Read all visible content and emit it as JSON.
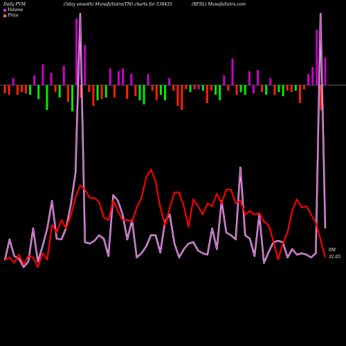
{
  "header": {
    "title": "Daily PVM",
    "subtitle": "(5day smooth) MunafaSutra(TM) charts for 539435",
    "ticker": "(RFSL) MunafaSutra.com"
  },
  "legend": {
    "volume_label": "Volume",
    "price_label": "Price",
    "volume_color": "#cc33cc",
    "price_color": "#e07a3a"
  },
  "side_labels": {
    "volume": "0M",
    "price": "32.05"
  },
  "colors": {
    "background": "#000000",
    "bar_up": "#cc00cc",
    "bar_down": "#ff2200",
    "bar_green": "#00ee00",
    "price_line": "#ff0000",
    "volume_line": "#cc44cc",
    "baseline": "#bbbbbb"
  },
  "chart_data": {
    "type": "line",
    "bars": [
      [
        -12,
        "r"
      ],
      [
        -14,
        "r"
      ],
      [
        10,
        "m"
      ],
      [
        -14,
        "r"
      ],
      [
        -10,
        "r"
      ],
      [
        -12,
        "r"
      ],
      [
        -14,
        "g"
      ],
      [
        14,
        "m"
      ],
      [
        -20,
        "g"
      ],
      [
        30,
        "m"
      ],
      [
        -36,
        "g"
      ],
      [
        18,
        "m"
      ],
      [
        -10,
        "r"
      ],
      [
        -18,
        "g"
      ],
      [
        28,
        "m"
      ],
      [
        -24,
        "r"
      ],
      [
        -38,
        "g"
      ],
      [
        96,
        "m"
      ],
      [
        -18,
        "r"
      ],
      [
        58,
        "m"
      ],
      [
        -10,
        "r"
      ],
      [
        -30,
        "r"
      ],
      [
        -22,
        "g"
      ],
      [
        -20,
        "r"
      ],
      [
        -18,
        "g"
      ],
      [
        24,
        "m"
      ],
      [
        -18,
        "r"
      ],
      [
        20,
        "m"
      ],
      [
        24,
        "m"
      ],
      [
        -20,
        "r"
      ],
      [
        16,
        "m"
      ],
      [
        -16,
        "r"
      ],
      [
        -22,
        "g"
      ],
      [
        -28,
        "g"
      ],
      [
        16,
        "m"
      ],
      [
        -8,
        "r"
      ],
      [
        -22,
        "r"
      ],
      [
        -14,
        "g"
      ],
      [
        -22,
        "g"
      ],
      [
        10,
        "m"
      ],
      [
        -8,
        "r"
      ],
      [
        -30,
        "r"
      ],
      [
        -36,
        "r"
      ],
      [
        -6,
        "r"
      ],
      [
        -10,
        "g"
      ],
      [
        -6,
        "r"
      ],
      [
        -6,
        "m"
      ],
      [
        -8,
        "g"
      ],
      [
        -26,
        "r"
      ],
      [
        -8,
        "r"
      ],
      [
        -14,
        "g"
      ],
      [
        -22,
        "g"
      ],
      [
        14,
        "m"
      ],
      [
        -8,
        "r"
      ],
      [
        38,
        "m"
      ],
      [
        -14,
        "r"
      ],
      [
        -10,
        "g"
      ],
      [
        -14,
        "g"
      ],
      [
        20,
        "m"
      ],
      [
        -12,
        "m"
      ],
      [
        22,
        "m"
      ],
      [
        -10,
        "r"
      ],
      [
        -14,
        "g"
      ],
      [
        10,
        "m"
      ],
      [
        -14,
        "r"
      ],
      [
        -10,
        "g"
      ],
      [
        -16,
        "g"
      ],
      [
        -8,
        "r"
      ],
      [
        -10,
        "r"
      ],
      [
        -8,
        "g"
      ],
      [
        -26,
        "r"
      ],
      [
        -6,
        "r"
      ],
      [
        16,
        "m"
      ],
      [
        26,
        "m"
      ],
      [
        80,
        "m"
      ],
      [
        -36,
        "r"
      ],
      [
        40,
        "m"
      ]
    ],
    "price": [
      376,
      372,
      380,
      368,
      382,
      370,
      372,
      386,
      366,
      375,
      325,
      336,
      318,
      330,
      312,
      285,
      268,
      274,
      286,
      286,
      292,
      314,
      318,
      290,
      305,
      318,
      318,
      320,
      300,
      286,
      256,
      245,
      262,
      300,
      326,
      300,
      278,
      278,
      298,
      328,
      288,
      298,
      310,
      294,
      298,
      280,
      294,
      274,
      274,
      294,
      290,
      310,
      305,
      310,
      308,
      320,
      326,
      348,
      375,
      352,
      336,
      304,
      288,
      300,
      298,
      310,
      322,
      346,
      372
    ],
    "volume": [
      376,
      346,
      370,
      374,
      386,
      378,
      330,
      378,
      356,
      330,
      290,
      345,
      346,
      330,
      296,
      250,
      20,
      350,
      352,
      348,
      340,
      345,
      370,
      282,
      290,
      310,
      346,
      318,
      372,
      366,
      356,
      340,
      340,
      365,
      320,
      310,
      352,
      372,
      360,
      352,
      350,
      362,
      366,
      368,
      330,
      360,
      290,
      336,
      340,
      346,
      242,
      340,
      345,
      370,
      310,
      380,
      364,
      350,
      348,
      350,
      372,
      360,
      368,
      366,
      368,
      372,
      366,
      20,
      330
    ]
  }
}
